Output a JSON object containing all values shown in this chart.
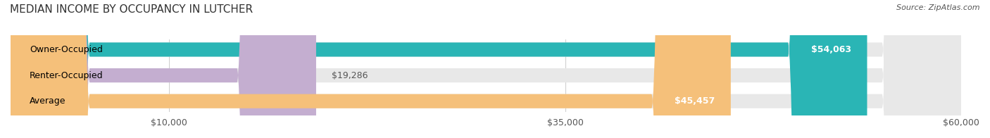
{
  "title": "MEDIAN INCOME BY OCCUPANCY IN LUTCHER",
  "source": "Source: ZipAtlas.com",
  "categories": [
    "Owner-Occupied",
    "Renter-Occupied",
    "Average"
  ],
  "values": [
    54063,
    19286,
    45457
  ],
  "labels": [
    "$54,063",
    "$19,286",
    "$45,457"
  ],
  "bar_colors": [
    "#2ab5b5",
    "#c4aed0",
    "#f5c07a"
  ],
  "bar_bg_color": "#f0f0f0",
  "xlim": [
    0,
    60000
  ],
  "xticks": [
    10000,
    35000,
    60000
  ],
  "xtick_labels": [
    "$10,000",
    "$35,000",
    "$60,000"
  ],
  "title_fontsize": 11,
  "source_fontsize": 8,
  "label_fontsize": 9,
  "cat_fontsize": 9,
  "bar_height": 0.55,
  "background_color": "#ffffff",
  "figsize": [
    14.06,
    1.96
  ],
  "dpi": 100
}
